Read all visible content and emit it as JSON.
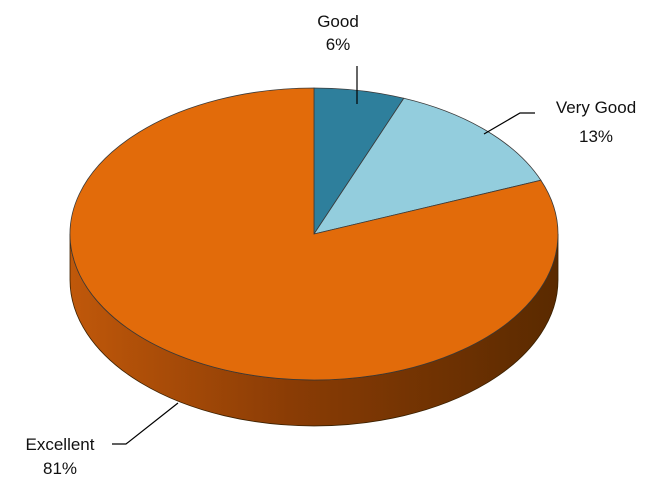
{
  "chart_data": {
    "type": "pie",
    "title": "",
    "style": "3d",
    "slices": [
      {
        "label": "Good",
        "value": 6,
        "value_label": "6%",
        "color": "#2E7F9C"
      },
      {
        "label": "Very Good",
        "value": 13,
        "value_label": "13%",
        "color": "#93CDDD"
      },
      {
        "label": "Excellent",
        "value": 81,
        "value_label": "81%",
        "color": "#E26B0A"
      }
    ],
    "side_color": "#5A2A00",
    "side_highlight": "#C0580A"
  }
}
